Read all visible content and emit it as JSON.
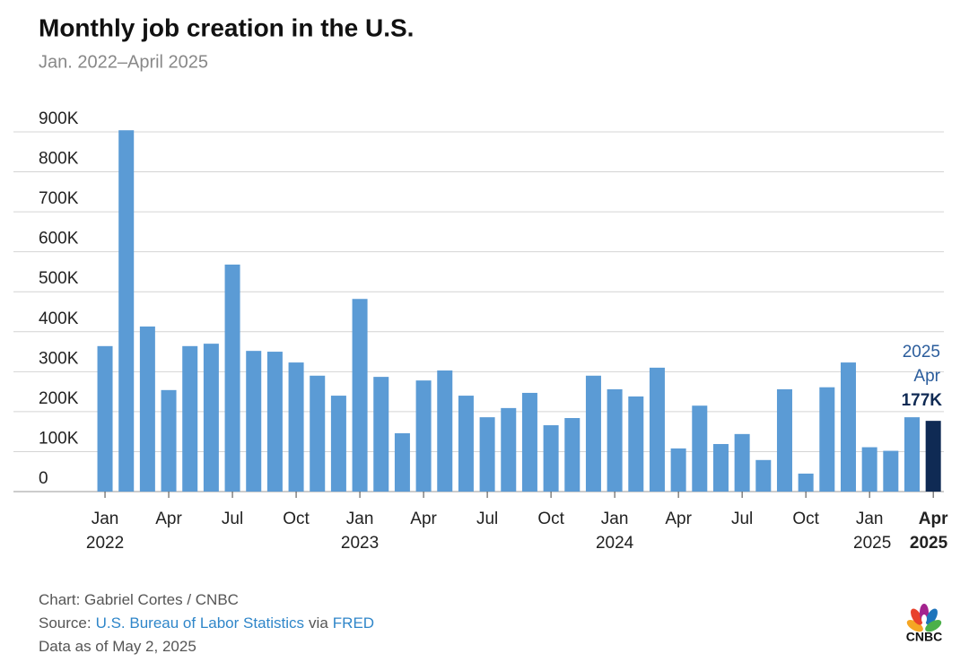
{
  "chart_data": {
    "type": "bar",
    "title": "Monthly job creation in the U.S.",
    "subtitle": "Jan. 2022–April 2025",
    "categories": [
      "Jan",
      null,
      null,
      "Apr",
      null,
      null,
      "Jul",
      null,
      null,
      "Oct",
      null,
      null,
      "Jan",
      null,
      null,
      "Apr",
      null,
      null,
      "Jul",
      null,
      null,
      "Oct",
      null,
      null,
      "Jan",
      null,
      null,
      "Apr",
      null,
      null,
      "Jul",
      null,
      null,
      "Oct",
      null,
      null,
      "Jan",
      null,
      null,
      "Apr"
    ],
    "years": [
      "2022",
      null,
      null,
      null,
      null,
      null,
      null,
      null,
      null,
      null,
      null,
      null,
      "2023",
      null,
      null,
      null,
      null,
      null,
      null,
      null,
      null,
      null,
      null,
      null,
      "2024",
      null,
      null,
      null,
      null,
      null,
      null,
      null,
      null,
      null,
      null,
      null,
      "2025",
      null,
      null,
      "2025"
    ],
    "values": [
      364000,
      904000,
      413000,
      254000,
      364000,
      370000,
      568000,
      352000,
      350000,
      323000,
      290000,
      240000,
      482000,
      287000,
      146000,
      278000,
      303000,
      240000,
      186000,
      209000,
      247000,
      166000,
      184000,
      290000,
      256000,
      238000,
      310000,
      108000,
      215000,
      119000,
      144000,
      79000,
      256000,
      45000,
      261000,
      323000,
      111000,
      102000,
      186000,
      177000
    ],
    "value_labels": [
      null,
      null,
      null,
      null,
      null,
      null,
      null,
      null,
      null,
      null,
      null,
      null,
      null,
      null,
      null,
      null,
      null,
      null,
      null,
      null,
      null,
      null,
      null,
      null,
      null,
      null,
      null,
      null,
      null,
      null,
      null,
      null,
      null,
      null,
      null,
      null,
      null,
      null,
      null,
      "177K"
    ],
    "color": "#5b9bd5",
    "highlight_color": "#0f2a54",
    "annotation": [
      "2025",
      "Apr"
    ],
    "ylim": [
      0,
      900000
    ],
    "yticks": [
      0,
      {
        "value": 100000,
        "label": "100K"
      },
      {
        "value": 200000,
        "label": "200K"
      },
      {
        "value": 300000,
        "label": "300K"
      },
      {
        "value": 400000,
        "label": "400K"
      },
      {
        "value": 500000,
        "label": "500K"
      },
      {
        "value": 600000,
        "label": "600K"
      },
      {
        "value": 700000,
        "label": "700K"
      },
      {
        "value": 800000,
        "label": "800K"
      },
      {
        "value": 900000,
        "label": "900K"
      }
    ],
    "grid": true
  },
  "footer": {
    "credit": "Chart: Gabriel Cortes / CNBC",
    "source_prefix": "Source:",
    "source_link": "U.S. Bureau of Labor Statistics",
    "source_middle": "via",
    "source_link2": "FRED",
    "date_note": "Data as of May 2, 2025",
    "logo": "CNBC"
  }
}
